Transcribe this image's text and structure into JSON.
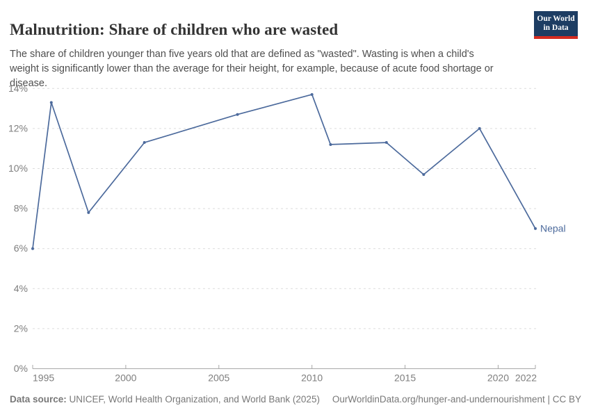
{
  "header": {
    "title": "Malnutrition: Share of children who are wasted",
    "subtitle": "The share of children younger than five years old that are defined as \"wasted\". Wasting is when a child's weight is significantly lower than the average for their height, for example, because of acute food shortage or disease.",
    "logo": {
      "line1": "Our World",
      "line2": "in Data"
    }
  },
  "chart_data": {
    "type": "line",
    "title": "Malnutrition: Share of children who are wasted",
    "series": [
      {
        "name": "Nepal",
        "x": [
          1995,
          1996,
          1998,
          2001,
          2006,
          2010,
          2011,
          2014,
          2016,
          2019,
          2022
        ],
        "values": [
          6.0,
          13.3,
          7.8,
          11.3,
          12.7,
          13.7,
          11.2,
          11.3,
          9.7,
          12.0,
          7.0
        ]
      }
    ],
    "xlabel": "",
    "ylabel": "",
    "xlim": [
      1995,
      2022
    ],
    "ylim": [
      0,
      14
    ],
    "x_ticks": [
      1995,
      2000,
      2005,
      2010,
      2015,
      2020,
      2022
    ],
    "y_ticks": [
      0,
      2,
      4,
      6,
      8,
      10,
      12,
      14
    ],
    "y_tick_suffix": "%",
    "grid": "horizontal-dashed",
    "legend_position": "end-of-line-label",
    "end_label": "Nepal",
    "colors": {
      "line": "#4c6a9c",
      "grid": "#dcdcdc",
      "axis": "#a8a8a8",
      "tick_text": "#7e7e7e"
    }
  },
  "footer": {
    "datasource_label": "Data source:",
    "datasource_text": " UNICEF, World Health Organization, and World Bank (2025)",
    "link": "OurWorldinData.org/hunger-and-undernourishment | CC BY"
  }
}
